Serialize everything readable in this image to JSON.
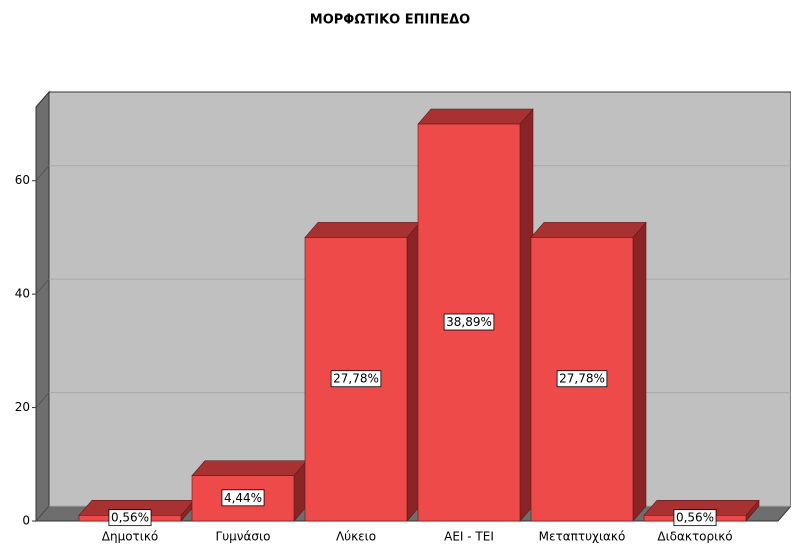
{
  "chart_data": {
    "type": "bar3d",
    "title": "ΜΟΡΦΩΤΙΚΟ ΕΠΙΠΕΔΟ",
    "categories": [
      "Δημοτικό",
      "Γυμνάσιο",
      "Λύκειο",
      "ΑΕΙ - ΤΕΙ",
      "Μεταπτυχιακό",
      "Διδακτορικό"
    ],
    "values": [
      1,
      8,
      50,
      70,
      50,
      1
    ],
    "percent_labels": [
      "0,56%",
      "4,44%",
      "27,78%",
      "38,89%",
      "27,78%",
      "0,56%"
    ],
    "color": "#ee4a4a",
    "ylim": [
      0,
      73
    ],
    "yticks": [
      0,
      20,
      40,
      60
    ],
    "grid": true
  }
}
